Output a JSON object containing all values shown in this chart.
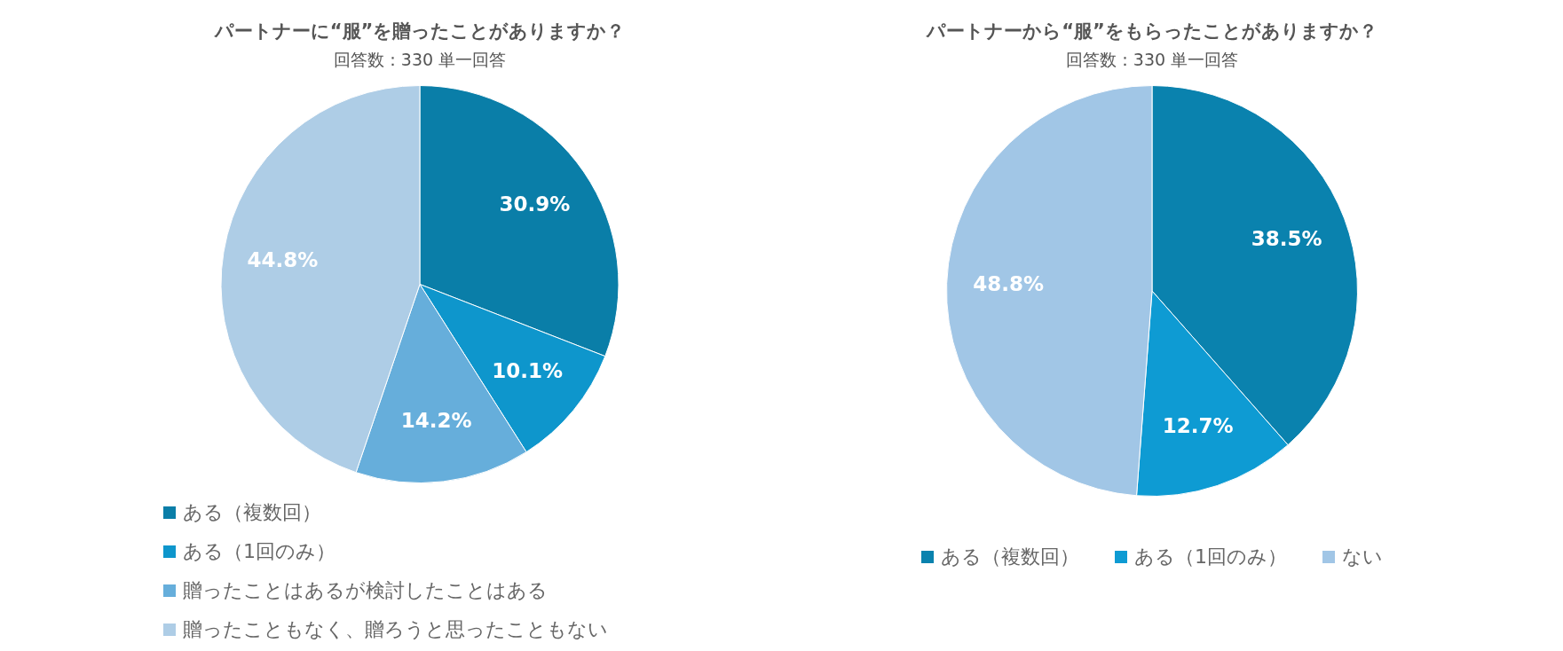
{
  "chart_data": [
    {
      "type": "pie",
      "title": "パートナーに“服”を贈ったことがありますか？",
      "subtitle": "回答数：330 単一回答",
      "categories": [
        "ある（複数回）",
        "ある（1回のみ）",
        "贈ったことはあるが検討したことはある",
        "贈ったこともなく、贈ろうと思ったこともない"
      ],
      "values": [
        30.9,
        10.1,
        14.2,
        44.8
      ],
      "value_labels": [
        "30.9%",
        "10.1%",
        "14.2%",
        "44.8%"
      ],
      "colors": [
        "#0a7ea8",
        "#0e96cc",
        "#66aedb",
        "#aecde6"
      ],
      "legend": "bottom"
    },
    {
      "type": "pie",
      "title": "パートナーから“服”をもらったことがありますか？",
      "subtitle": "回答数：330 単一回答",
      "categories": [
        "ある（複数回）",
        "ある（1回のみ）",
        "ない"
      ],
      "values": [
        38.5,
        12.7,
        48.8
      ],
      "value_labels": [
        "38.5%",
        "12.7%",
        "48.8%"
      ],
      "colors": [
        "#0a82ae",
        "#0e9bd3",
        "#a1c6e6"
      ],
      "legend": "bottom"
    }
  ]
}
